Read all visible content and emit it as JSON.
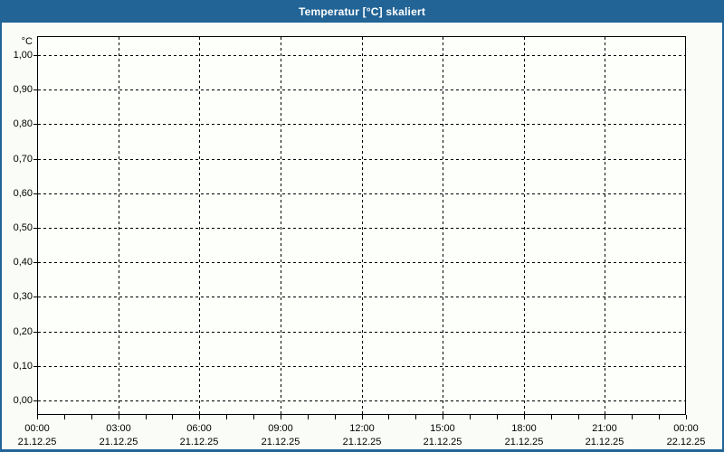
{
  "window": {
    "title": "Temperatur [°C] skaliert"
  },
  "colors": {
    "titlebar": "#226496",
    "window_border": "#226496",
    "title_text": "#FFFFFF",
    "content_background": "#FAFDF7",
    "plot_background": "#FDFFFB",
    "grid": "#000000",
    "text": "#000000"
  },
  "chart_data": {
    "type": "line",
    "title": "Temperatur [°C] skaliert",
    "xlabel": "",
    "ylabel": "°C",
    "ylim": [
      -0.04,
      1.05
    ],
    "xlim_hours": [
      0,
      24
    ],
    "grid": "dashed",
    "legend_position": "none",
    "series": [],
    "y_ticks": [
      {
        "value": 1.0,
        "label": "1,00"
      },
      {
        "value": 0.9,
        "label": "0,90"
      },
      {
        "value": 0.8,
        "label": "0,80"
      },
      {
        "value": 0.7,
        "label": "0,70"
      },
      {
        "value": 0.6,
        "label": "0,60"
      },
      {
        "value": 0.5,
        "label": "0,50"
      },
      {
        "value": 0.4,
        "label": "0,40"
      },
      {
        "value": 0.3,
        "label": "0,30"
      },
      {
        "value": 0.2,
        "label": "0,20"
      },
      {
        "value": 0.1,
        "label": "0,10"
      },
      {
        "value": 0.0,
        "label": "0,00"
      }
    ],
    "x_ticks": [
      {
        "hour": 0,
        "time": "00:00",
        "date": "21.12.25"
      },
      {
        "hour": 3,
        "time": "03:00",
        "date": "21.12.25"
      },
      {
        "hour": 6,
        "time": "06:00",
        "date": "21.12.25"
      },
      {
        "hour": 9,
        "time": "09:00",
        "date": "21.12.25"
      },
      {
        "hour": 12,
        "time": "12:00",
        "date": "21.12.25"
      },
      {
        "hour": 15,
        "time": "15:00",
        "date": "21.12.25"
      },
      {
        "hour": 18,
        "time": "18:00",
        "date": "21.12.25"
      },
      {
        "hour": 21,
        "time": "21:00",
        "date": "21.12.25"
      },
      {
        "hour": 24,
        "time": "00:00",
        "date": "22.12.25"
      }
    ],
    "x_minor_tick_interval_hours": 1
  }
}
